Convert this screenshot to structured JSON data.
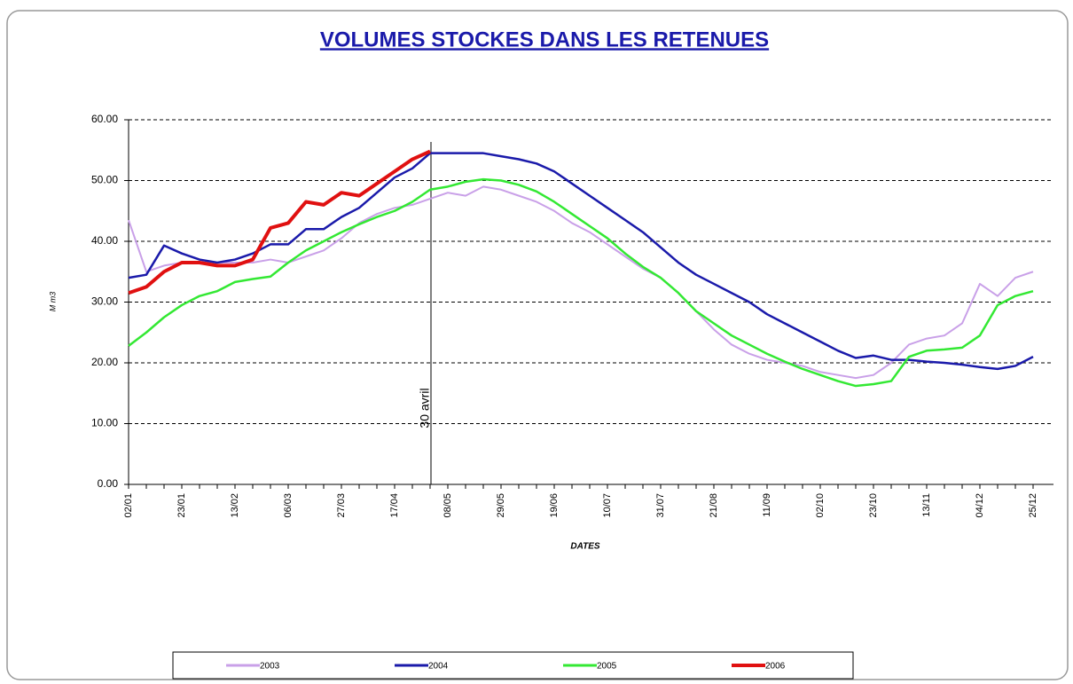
{
  "chart_data": {
    "type": "line",
    "title": "VOLUMES STOCKES DANS LES RETENUES",
    "x_label": "DATES",
    "y_label": "M m3",
    "annotation": "30 avril",
    "categories": [
      "02/01",
      null,
      null,
      "23/01",
      null,
      null,
      "13/02",
      null,
      null,
      "06/03",
      null,
      null,
      "27/03",
      null,
      null,
      "17/04",
      null,
      null,
      "08/05",
      null,
      null,
      "29/05",
      null,
      null,
      "19/06",
      null,
      null,
      "10/07",
      null,
      null,
      "31/07",
      null,
      null,
      "21/08",
      null,
      null,
      "11/09",
      null,
      null,
      "02/10",
      null,
      null,
      "23/10",
      null,
      null,
      "13/11",
      null,
      null,
      "04/12",
      null,
      null,
      "25/12"
    ],
    "ylim": [
      0,
      60
    ],
    "yticks": [
      {
        "value": 0,
        "label": "0.00"
      },
      {
        "value": 10,
        "label": "10.00"
      },
      {
        "value": 20,
        "label": "20.00"
      },
      {
        "value": 30,
        "label": "30.00"
      },
      {
        "value": 40,
        "label": "40.00"
      },
      {
        "value": 50,
        "label": "50.00"
      },
      {
        "value": 60,
        "label": "60.00"
      }
    ],
    "grid": true,
    "legend": "bottom",
    "series": [
      {
        "name": "2003",
        "color": "#c9a0e8",
        "values": [
          43.5,
          35,
          36,
          36.5,
          36.5,
          36.5,
          36.5,
          36.5,
          37,
          36.5,
          37.5,
          38.5,
          40.5,
          43,
          44.5,
          45.5,
          46,
          47,
          48,
          47.5,
          49,
          48.5,
          47.5,
          46.5,
          45,
          43,
          41.5,
          39.5,
          37.5,
          35.5,
          34,
          31.5,
          28.5,
          25.5,
          23,
          21.5,
          20.5,
          20,
          19.5,
          18.5,
          18,
          17.5,
          18,
          20,
          23,
          24,
          24.5,
          26.5,
          33,
          31,
          34,
          35
        ]
      },
      {
        "name": "2004",
        "color": "#1a1aaa",
        "values": [
          34,
          34.5,
          39.3,
          38,
          37,
          36.5,
          37,
          38,
          39.5,
          39.5,
          42,
          42,
          44,
          45.5,
          48,
          50.5,
          52,
          54.5,
          54.5,
          54.5,
          54.5,
          54,
          53.5,
          52.8,
          51.5,
          49.5,
          47.5,
          45.5,
          43.5,
          41.5,
          39,
          36.5,
          34.5,
          33,
          31.5,
          30,
          28,
          26.5,
          25,
          23.5,
          22,
          20.8,
          21.2,
          20.5,
          20.5,
          20.2,
          20,
          19.7,
          19.3,
          19,
          19.5,
          21
        ]
      },
      {
        "name": "2005",
        "color": "#33e833",
        "values": [
          22.8,
          25,
          27.5,
          29.5,
          31,
          31.8,
          33.3,
          33.8,
          34.2,
          36.5,
          38.5,
          40,
          41.5,
          42.8,
          44,
          45,
          46.5,
          48.5,
          49,
          49.8,
          50.2,
          50,
          49.3,
          48.2,
          46.5,
          44.5,
          42.5,
          40.5,
          38,
          35.8,
          34,
          31.5,
          28.5,
          26.5,
          24.5,
          23,
          21.5,
          20.2,
          19,
          18,
          17,
          16.2,
          16.5,
          17,
          21,
          22,
          22.2,
          22.5,
          24.5,
          29.5,
          31,
          31.8
        ]
      },
      {
        "name": "2006",
        "color": "#e01010",
        "values": [
          31.5,
          32.5,
          35,
          36.5,
          36.5,
          36,
          36,
          37,
          42.2,
          43,
          46.5,
          46,
          48,
          47.5,
          49.5,
          51.5,
          53.5,
          54.8,
          null,
          null,
          null,
          null,
          null,
          null,
          null,
          null,
          null,
          null,
          null,
          null,
          null,
          null,
          null,
          null,
          null,
          null,
          null,
          null,
          null,
          null,
          null,
          null,
          null,
          null,
          null,
          null,
          null,
          null,
          null,
          null,
          null,
          null
        ]
      }
    ]
  }
}
